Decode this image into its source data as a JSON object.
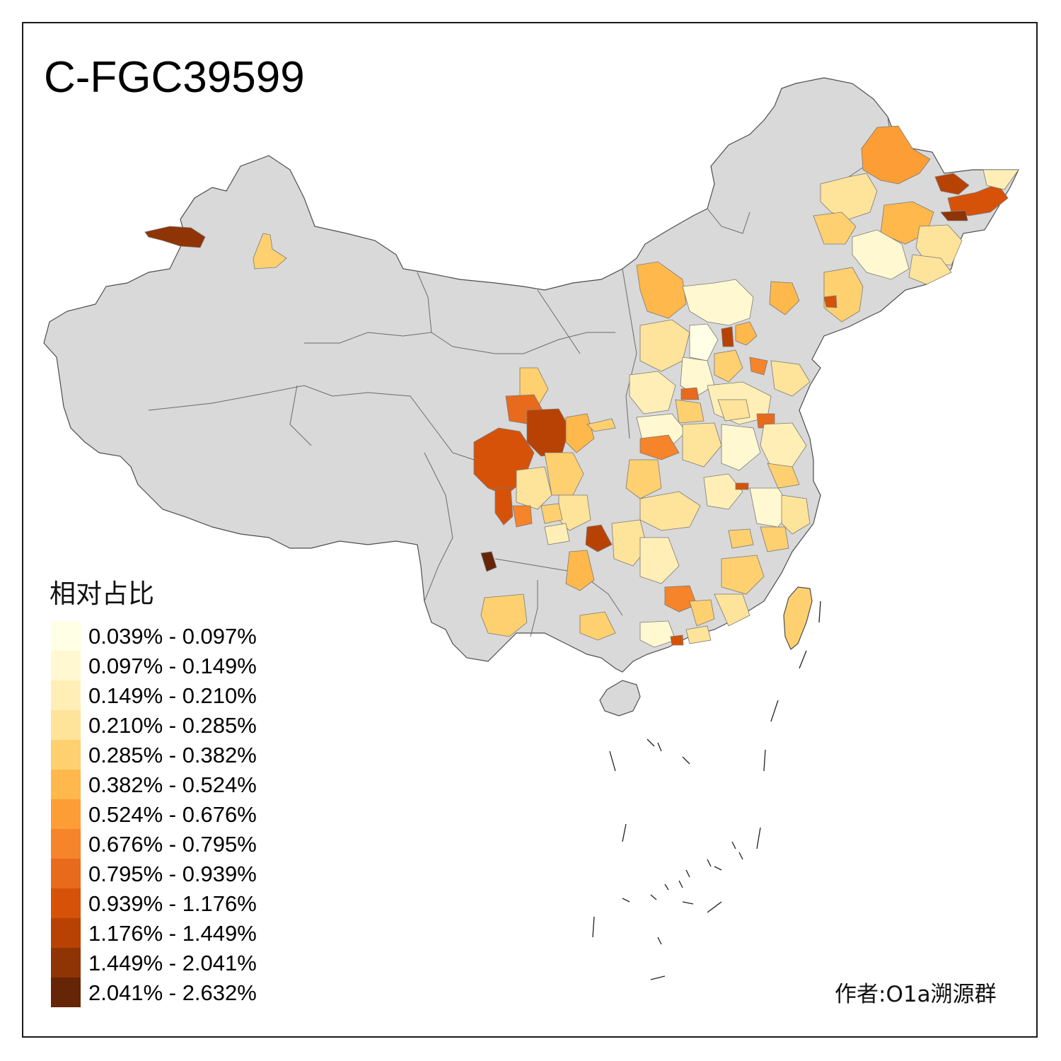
{
  "title": "C-FGC39599",
  "legend": {
    "title": "相对占比",
    "items": [
      {
        "label": "0.039% - 0.097%",
        "color": "#ffffe5"
      },
      {
        "label": "0.097% - 0.149%",
        "color": "#fff8d0"
      },
      {
        "label": "0.149% - 0.210%",
        "color": "#ffefb6"
      },
      {
        "label": "0.210% - 0.285%",
        "color": "#fee39a"
      },
      {
        "label": "0.285% - 0.382%",
        "color": "#fed070"
      },
      {
        "label": "0.382% - 0.524%",
        "color": "#feb84c"
      },
      {
        "label": "0.524% - 0.676%",
        "color": "#fd9d35"
      },
      {
        "label": "0.676% - 0.795%",
        "color": "#f6842a"
      },
      {
        "label": "0.795% - 0.939%",
        "color": "#e86a1c"
      },
      {
        "label": "0.939% - 1.176%",
        "color": "#d65209"
      },
      {
        "label": "1.176% - 1.449%",
        "color": "#b84204"
      },
      {
        "label": "1.449% - 2.041%",
        "color": "#8f3404"
      },
      {
        "label": "2.041% - 2.632%",
        "color": "#662506"
      }
    ]
  },
  "author": "作者:O1a溯源群",
  "colors": {
    "no_data": "#d9d9d9",
    "border": "#5a5a5a"
  }
}
